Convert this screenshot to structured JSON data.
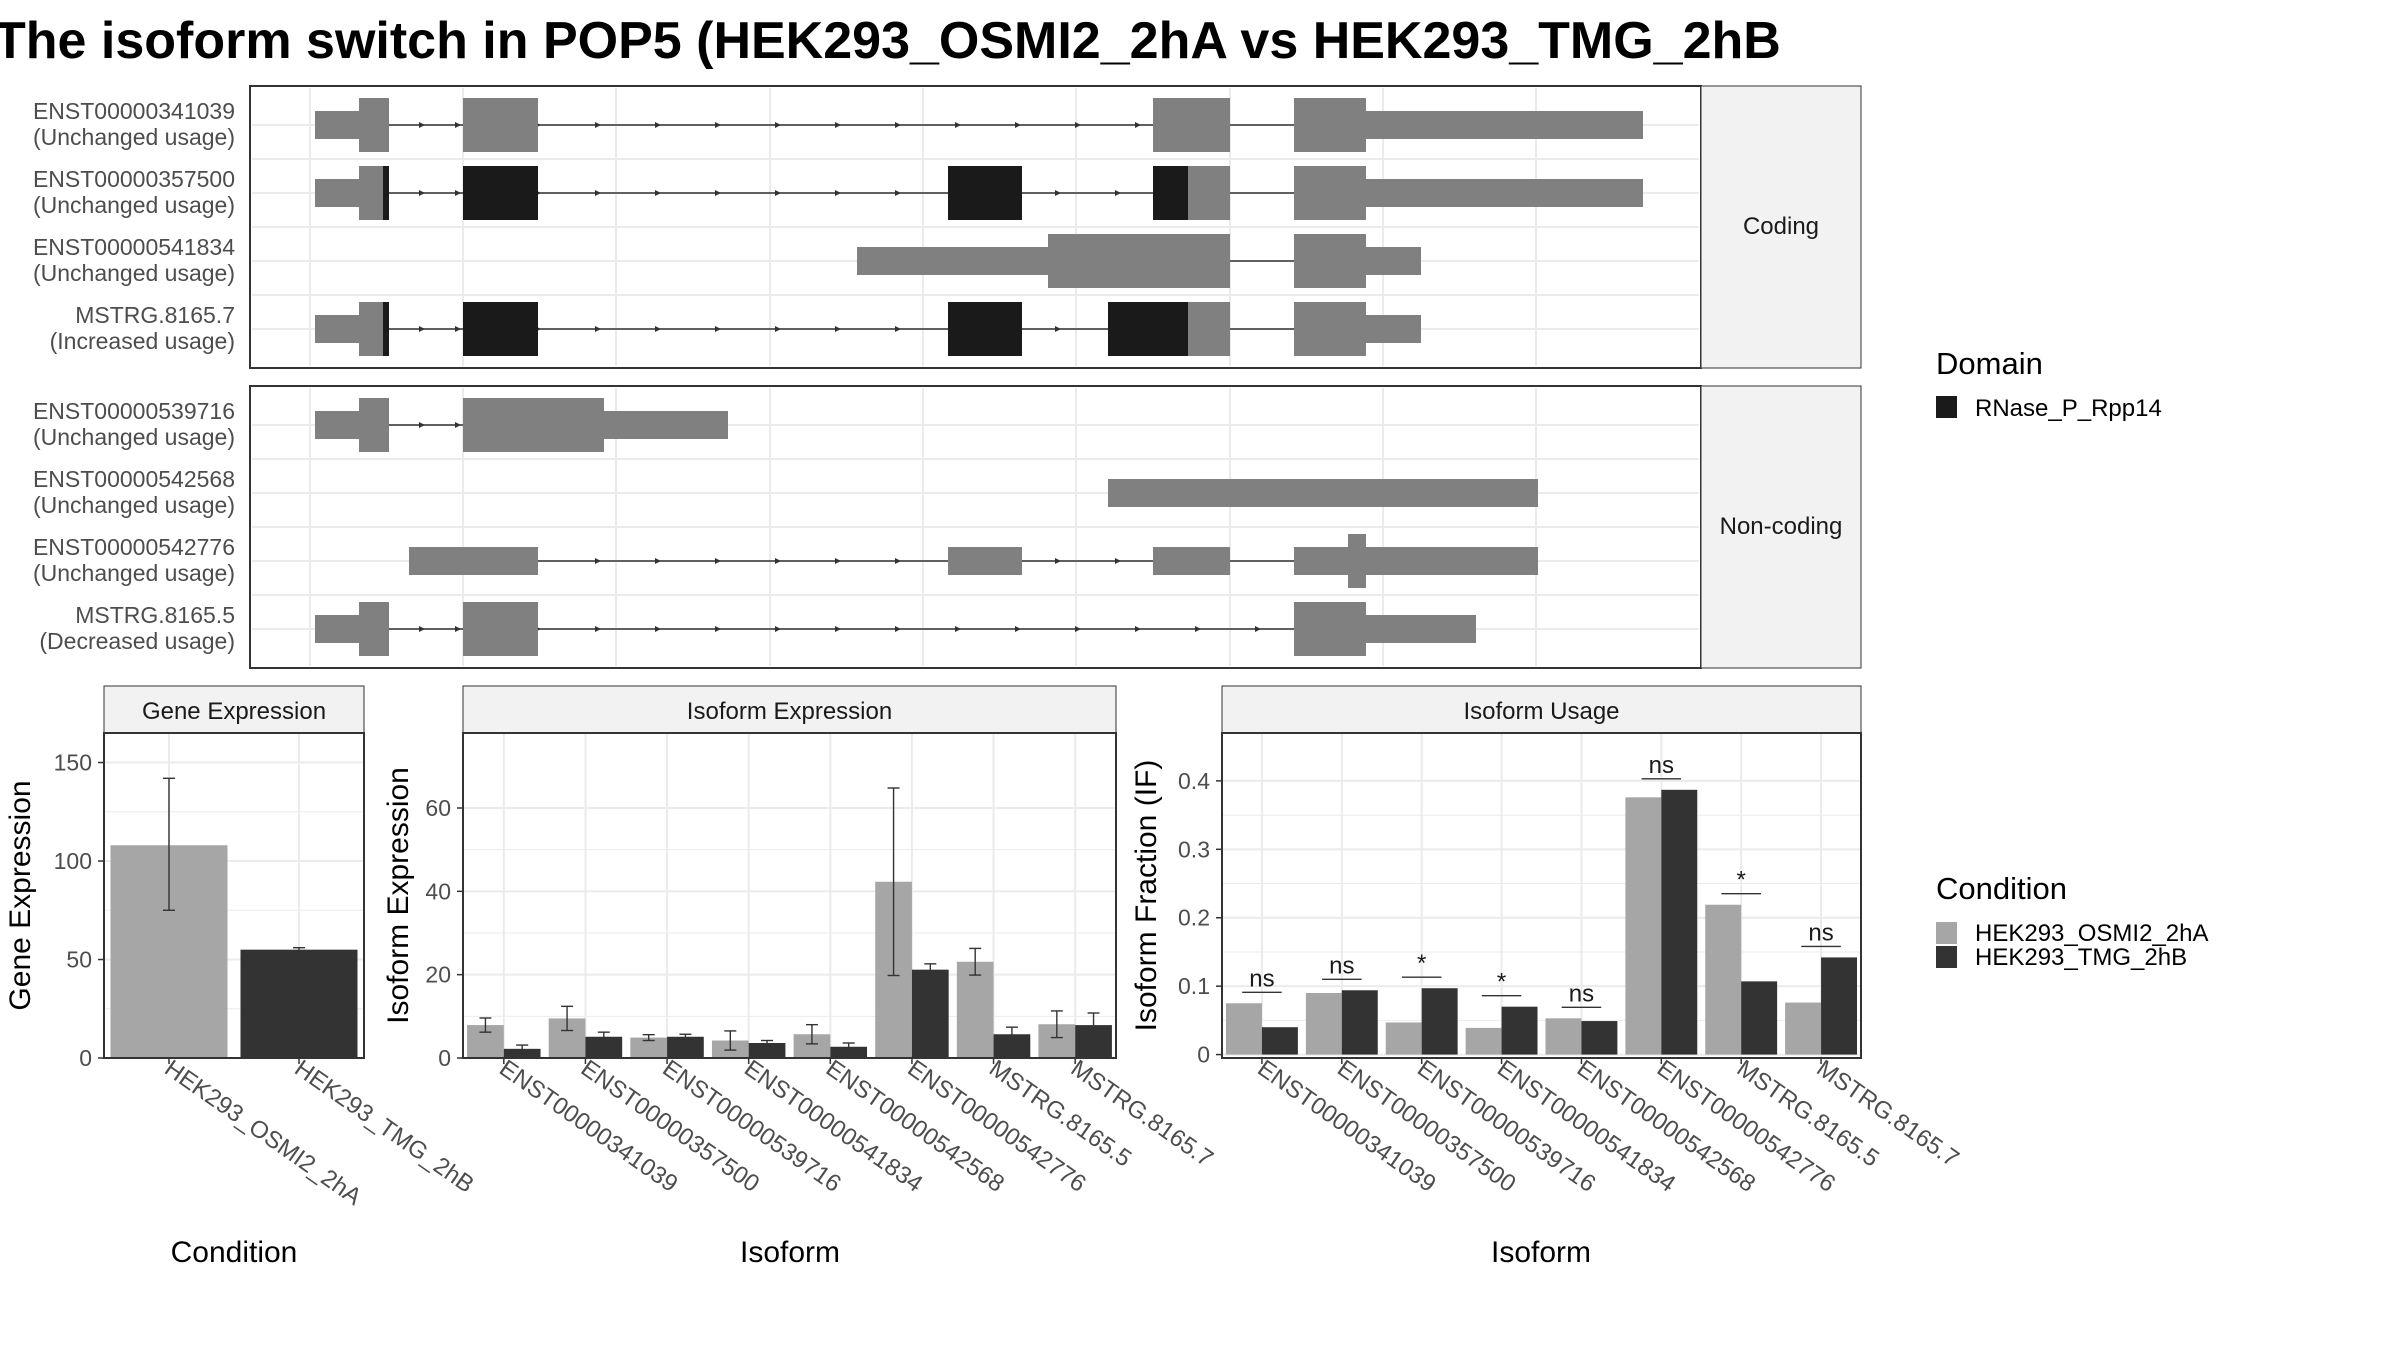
{
  "title": "The isoform switch in POP5 (HEK293_OSMI2_2hA vs HEK293_TMG_2hB",
  "colors": {
    "exon": "#808080",
    "domain": "#1a1a1a",
    "cond_A": "#a6a6a6",
    "cond_B": "#333333",
    "grid": "#ebebeb",
    "strip": "#f2f2f2",
    "border": "#333333"
  },
  "structure": {
    "facets": [
      {
        "label": "Coding",
        "transcripts": [
          {
            "id": "ENST00000341039",
            "usage": "(Unchanged usage)",
            "coding": true,
            "exons": [
              [
                0,
                1,
                0
              ],
              [
                1,
                2,
                0
              ],
              [
                3,
                5,
                0
              ],
              [
                4,
                5,
                0
              ]
            ],
            "domains": []
          },
          {
            "id": "ENST00000357500",
            "usage": "(Unchanged usage)",
            "coding": true,
            "exons": [
              [
                0,
                1,
                0
              ],
              [
                1,
                2,
                0
              ],
              [
                2,
                5,
                0
              ],
              [
                4,
                5,
                0
              ]
            ],
            "domains": [
              "d1",
              "d2",
              "d3",
              "d4"
            ]
          },
          {
            "id": "ENST00000541834",
            "usage": "(Unchanged usage)",
            "coding": true,
            "exons": [],
            "domains": []
          },
          {
            "id": "MSTRG.8165.7",
            "usage": "(Increased usage)",
            "coding": true,
            "exons": [],
            "domains": [
              "d1",
              "d2",
              "d3",
              "d4"
            ]
          }
        ]
      },
      {
        "label": "Non-coding",
        "transcripts": [
          {
            "id": "ENST00000539716",
            "usage": "(Unchanged usage)",
            "coding": false
          },
          {
            "id": "ENST00000542568",
            "usage": "(Unchanged usage)",
            "coding": false
          },
          {
            "id": "ENST00000542776",
            "usage": "(Unchanged usage)",
            "coding": false
          },
          {
            "id": "MSTRG.8165.5",
            "usage": "(Decreased usage)",
            "coding": false
          }
        ]
      }
    ]
  },
  "legend_domain": {
    "title": "Domain",
    "items": [
      {
        "label": "RNase_P_Rpp14",
        "color": "#1a1a1a"
      }
    ]
  },
  "legend_condition": {
    "title": "Condition",
    "items": [
      {
        "label": "HEK293_OSMI2_2hA",
        "color": "#a6a6a6"
      },
      {
        "label": "HEK293_TMG_2hB",
        "color": "#333333"
      }
    ]
  },
  "chart_data": [
    {
      "type": "bar",
      "title": "Gene Expression",
      "xlabel": "Condition",
      "ylabel": "Gene Expression",
      "ylim": [
        0,
        165
      ],
      "yticks": [
        0,
        50,
        100,
        150
      ],
      "categories": [
        "HEK293_OSMI2_2hA",
        "HEK293_TMG_2hB"
      ],
      "values": [
        108,
        55
      ],
      "error": [
        [
          75,
          142
        ],
        [
          54,
          56
        ]
      ]
    },
    {
      "type": "bar",
      "title": "Isoform Expression",
      "xlabel": "Isoform",
      "ylabel": "Isoform Expression",
      "ylim": [
        0,
        78
      ],
      "yticks": [
        0,
        20,
        40,
        60
      ],
      "categories": [
        "ENST00000341039",
        "ENST00000357500",
        "ENST00000539716",
        "ENST00000541834",
        "ENST00000542568",
        "ENST00000542776",
        "MSTRG.8165.5",
        "MSTRG.8165.7"
      ],
      "series": [
        {
          "name": "HEK293_OSMI2_2hA",
          "values": [
            7.9,
            9.5,
            4.9,
            4.2,
            5.7,
            42.3,
            23.1,
            8.1
          ],
          "error": [
            [
              6.2,
              9.6
            ],
            [
              6.6,
              12.4
            ],
            [
              4.2,
              5.6
            ],
            [
              1.9,
              6.5
            ],
            [
              3.4,
              8.0
            ],
            [
              19.8,
              64.8
            ],
            [
              19.9,
              26.3
            ],
            [
              4.9,
              11.3
            ]
          ]
        },
        {
          "name": "HEK293_TMG_2hB",
          "values": [
            2.2,
            5.1,
            5.1,
            3.6,
            2.7,
            21.2,
            5.7,
            7.9
          ],
          "error": [
            [
              1.3,
              3.1
            ],
            [
              4.0,
              6.2
            ],
            [
              4.5,
              5.7
            ],
            [
              3.0,
              4.2
            ],
            [
              1.8,
              3.6
            ],
            [
              19.8,
              22.6
            ],
            [
              4.0,
              7.4
            ],
            [
              5.0,
              10.8
            ]
          ]
        }
      ]
    },
    {
      "type": "bar",
      "title": "Isoform Usage",
      "xlabel": "Isoform",
      "ylabel": "Isoform Fraction (IF)",
      "ylim": [
        -0.005,
        0.47
      ],
      "yticks": [
        0.0,
        0.1,
        0.2,
        0.3,
        0.4
      ],
      "categories": [
        "ENST00000341039",
        "ENST00000357500",
        "ENST00000539716",
        "ENST00000541834",
        "ENST00000542568",
        "ENST00000542776",
        "MSTRG.8165.5",
        "MSTRG.8165.7"
      ],
      "series": [
        {
          "name": "HEK293_OSMI2_2hA",
          "values": [
            0.075,
            0.09,
            0.047,
            0.039,
            0.053,
            0.376,
            0.219,
            0.076
          ]
        },
        {
          "name": "HEK293_TMG_2hB",
          "values": [
            0.04,
            0.094,
            0.097,
            0.07,
            0.049,
            0.387,
            0.107,
            0.142
          ]
        }
      ],
      "significance": [
        "ns",
        "ns",
        "*",
        "*",
        "ns",
        "ns",
        "*",
        "ns"
      ]
    }
  ]
}
